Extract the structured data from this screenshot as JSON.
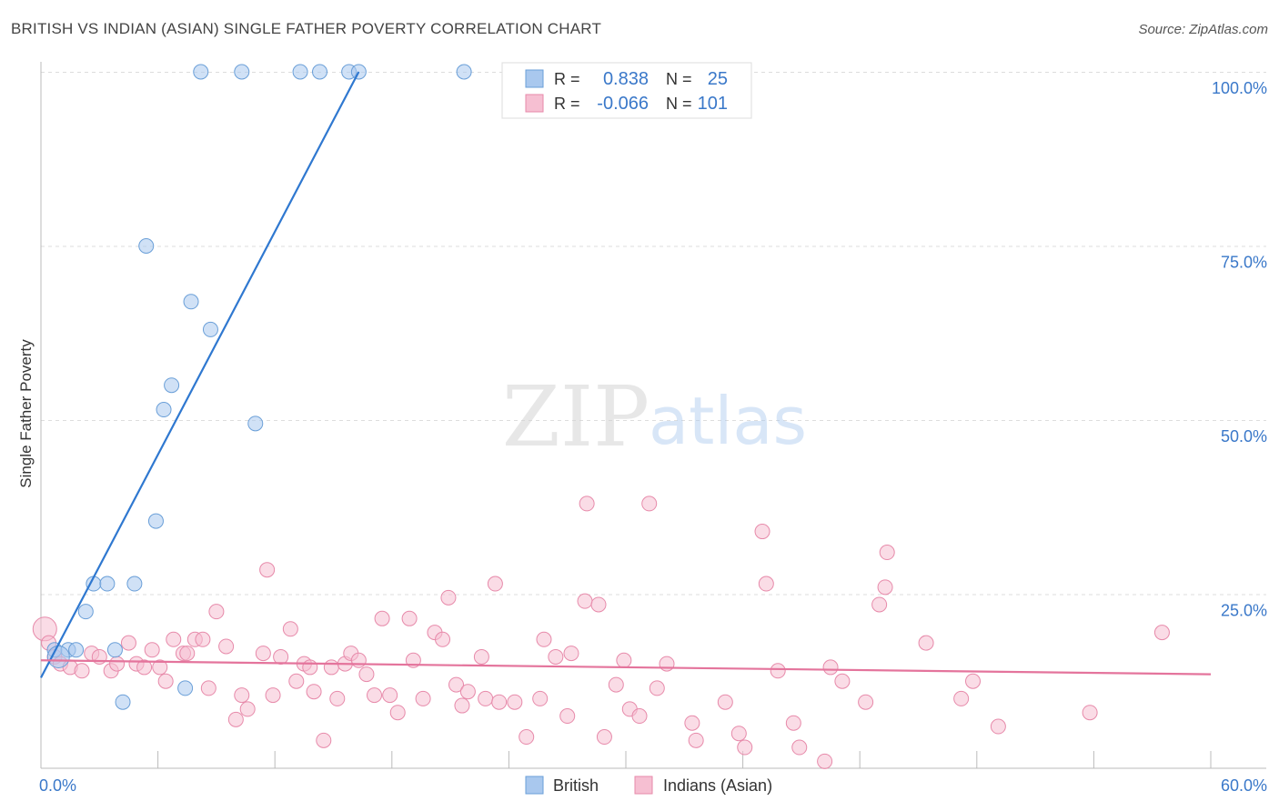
{
  "header": {
    "title": "BRITISH VS INDIAN (ASIAN) SINGLE FATHER POVERTY CORRELATION CHART",
    "source": "Source: ZipAtlas.com"
  },
  "watermark": {
    "zip": "ZIP",
    "atlas": "atlas"
  },
  "legend_box": {
    "rows": [
      {
        "r_label": "R =",
        "r_value": "0.838",
        "n_label": "N =",
        "n_value": "25"
      },
      {
        "r_label": "R =",
        "r_value": "-0.066",
        "n_label": "N =",
        "n_value": "101"
      }
    ]
  },
  "bottom_legend": [
    "British",
    "Indians (Asian)"
  ],
  "colors": {
    "british_fill": "#a9c8ee",
    "british_stroke": "#6a9fd8",
    "british_line": "#2f78d0",
    "indian_fill": "#f6bfd2",
    "indian_stroke": "#e78aaa",
    "indian_line": "#e4749c",
    "tick_label": "#3a78c9",
    "grid": "#dddddd",
    "axis": "#bbbbbb",
    "text": "#333333"
  },
  "chart_data": {
    "type": "scatter",
    "title": "BRITISH VS INDIAN (ASIAN) SINGLE FATHER POVERTY CORRELATION CHART",
    "xlabel": "",
    "ylabel": "Single Father Poverty",
    "xlim": [
      0,
      60
    ],
    "ylim": [
      0,
      105
    ],
    "x_tick_labels": [
      "0.0%",
      "60.0%"
    ],
    "y_ticks": [
      25,
      50,
      75,
      100
    ],
    "y_tick_labels": [
      "25.0%",
      "50.0%",
      "75.0%",
      "100.0%"
    ],
    "grid": true,
    "legend_position": "top-center",
    "series": [
      {
        "name": "British",
        "r": 0.838,
        "n": 25,
        "trend": {
          "x": [
            0.0,
            16.3
          ],
          "y": [
            13.0,
            100.0
          ]
        },
        "points": [
          {
            "x": 8.2,
            "y": 100.0
          },
          {
            "x": 10.3,
            "y": 100.0
          },
          {
            "x": 13.3,
            "y": 100.0
          },
          {
            "x": 14.3,
            "y": 100.0
          },
          {
            "x": 15.8,
            "y": 100.0
          },
          {
            "x": 16.3,
            "y": 100.0
          },
          {
            "x": 21.7,
            "y": 100.0
          },
          {
            "x": 5.4,
            "y": 75.0
          },
          {
            "x": 7.7,
            "y": 67.0
          },
          {
            "x": 8.7,
            "y": 63.0
          },
          {
            "x": 6.7,
            "y": 55.0
          },
          {
            "x": 6.3,
            "y": 51.5
          },
          {
            "x": 11.0,
            "y": 49.5
          },
          {
            "x": 5.9,
            "y": 35.5
          },
          {
            "x": 2.7,
            "y": 26.5
          },
          {
            "x": 3.4,
            "y": 26.5
          },
          {
            "x": 4.8,
            "y": 26.5
          },
          {
            "x": 2.3,
            "y": 22.5
          },
          {
            "x": 0.7,
            "y": 17.0
          },
          {
            "x": 1.4,
            "y": 17.0
          },
          {
            "x": 1.8,
            "y": 17.0
          },
          {
            "x": 3.8,
            "y": 17.0
          },
          {
            "x": 0.9,
            "y": 16.0
          },
          {
            "x": 7.4,
            "y": 11.5
          },
          {
            "x": 4.2,
            "y": 9.5
          }
        ]
      },
      {
        "name": "Indians (Asian)",
        "r": -0.066,
        "n": 101,
        "trend": {
          "x": [
            0.0,
            60.0
          ],
          "y": [
            15.5,
            13.5
          ]
        },
        "points": [
          {
            "x": 0.2,
            "y": 20.0
          },
          {
            "x": 0.4,
            "y": 18.0
          },
          {
            "x": 0.7,
            "y": 16.0
          },
          {
            "x": 1.0,
            "y": 15.0
          },
          {
            "x": 1.5,
            "y": 14.5
          },
          {
            "x": 2.1,
            "y": 14.0
          },
          {
            "x": 2.6,
            "y": 16.5
          },
          {
            "x": 3.0,
            "y": 16.0
          },
          {
            "x": 3.6,
            "y": 14.0
          },
          {
            "x": 3.9,
            "y": 15.0
          },
          {
            "x": 4.5,
            "y": 18.0
          },
          {
            "x": 4.9,
            "y": 15.0
          },
          {
            "x": 5.3,
            "y": 14.5
          },
          {
            "x": 5.7,
            "y": 17.0
          },
          {
            "x": 6.1,
            "y": 14.5
          },
          {
            "x": 6.4,
            "y": 12.5
          },
          {
            "x": 6.8,
            "y": 18.5
          },
          {
            "x": 7.3,
            "y": 16.5
          },
          {
            "x": 7.5,
            "y": 16.5
          },
          {
            "x": 7.9,
            "y": 18.5
          },
          {
            "x": 8.3,
            "y": 18.5
          },
          {
            "x": 8.6,
            "y": 11.5
          },
          {
            "x": 9.0,
            "y": 22.5
          },
          {
            "x": 9.5,
            "y": 17.5
          },
          {
            "x": 10.0,
            "y": 7.0
          },
          {
            "x": 10.3,
            "y": 10.5
          },
          {
            "x": 10.6,
            "y": 8.5
          },
          {
            "x": 11.4,
            "y": 16.5
          },
          {
            "x": 11.6,
            "y": 28.5
          },
          {
            "x": 11.9,
            "y": 10.5
          },
          {
            "x": 12.3,
            "y": 16.0
          },
          {
            "x": 12.8,
            "y": 20.0
          },
          {
            "x": 13.1,
            "y": 12.5
          },
          {
            "x": 13.5,
            "y": 15.0
          },
          {
            "x": 13.8,
            "y": 14.5
          },
          {
            "x": 14.0,
            "y": 11.0
          },
          {
            "x": 14.5,
            "y": 4.0
          },
          {
            "x": 14.9,
            "y": 14.5
          },
          {
            "x": 15.2,
            "y": 10.0
          },
          {
            "x": 15.6,
            "y": 15.0
          },
          {
            "x": 15.9,
            "y": 16.5
          },
          {
            "x": 16.3,
            "y": 15.5
          },
          {
            "x": 16.7,
            "y": 13.5
          },
          {
            "x": 17.1,
            "y": 10.5
          },
          {
            "x": 17.5,
            "y": 21.5
          },
          {
            "x": 17.9,
            "y": 10.5
          },
          {
            "x": 18.3,
            "y": 8.0
          },
          {
            "x": 18.9,
            "y": 21.5
          },
          {
            "x": 19.1,
            "y": 15.5
          },
          {
            "x": 19.6,
            "y": 10.0
          },
          {
            "x": 20.2,
            "y": 19.5
          },
          {
            "x": 20.6,
            "y": 18.5
          },
          {
            "x": 20.9,
            "y": 24.5
          },
          {
            "x": 21.3,
            "y": 12.0
          },
          {
            "x": 21.6,
            "y": 9.0
          },
          {
            "x": 21.9,
            "y": 11.0
          },
          {
            "x": 22.6,
            "y": 16.0
          },
          {
            "x": 22.8,
            "y": 10.0
          },
          {
            "x": 23.3,
            "y": 26.5
          },
          {
            "x": 23.5,
            "y": 9.5
          },
          {
            "x": 24.3,
            "y": 9.5
          },
          {
            "x": 24.9,
            "y": 4.5
          },
          {
            "x": 25.6,
            "y": 10.0
          },
          {
            "x": 25.8,
            "y": 18.5
          },
          {
            "x": 26.4,
            "y": 16.0
          },
          {
            "x": 27.0,
            "y": 7.5
          },
          {
            "x": 27.2,
            "y": 16.5
          },
          {
            "x": 28.0,
            "y": 38.0
          },
          {
            "x": 27.9,
            "y": 24.0
          },
          {
            "x": 28.6,
            "y": 23.5
          },
          {
            "x": 28.9,
            "y": 4.5
          },
          {
            "x": 29.5,
            "y": 12.0
          },
          {
            "x": 29.9,
            "y": 15.5
          },
          {
            "x": 30.2,
            "y": 8.5
          },
          {
            "x": 30.7,
            "y": 7.5
          },
          {
            "x": 31.2,
            "y": 38.0
          },
          {
            "x": 31.6,
            "y": 11.5
          },
          {
            "x": 32.1,
            "y": 15.0
          },
          {
            "x": 33.4,
            "y": 6.5
          },
          {
            "x": 33.6,
            "y": 4.0
          },
          {
            "x": 35.1,
            "y": 9.5
          },
          {
            "x": 35.8,
            "y": 5.0
          },
          {
            "x": 36.1,
            "y": 3.0
          },
          {
            "x": 37.0,
            "y": 34.0
          },
          {
            "x": 37.2,
            "y": 26.5
          },
          {
            "x": 37.8,
            "y": 14.0
          },
          {
            "x": 38.6,
            "y": 6.5
          },
          {
            "x": 38.9,
            "y": 3.0
          },
          {
            "x": 40.2,
            "y": 1.0
          },
          {
            "x": 41.1,
            "y": 12.5
          },
          {
            "x": 42.3,
            "y": 9.5
          },
          {
            "x": 43.0,
            "y": 23.5
          },
          {
            "x": 43.4,
            "y": 31.0
          },
          {
            "x": 43.3,
            "y": 26.0
          },
          {
            "x": 45.4,
            "y": 18.0
          },
          {
            "x": 47.2,
            "y": 10.0
          },
          {
            "x": 47.8,
            "y": 12.5
          },
          {
            "x": 49.1,
            "y": 6.0
          },
          {
            "x": 53.8,
            "y": 8.0
          },
          {
            "x": 57.5,
            "y": 19.5
          },
          {
            "x": 40.5,
            "y": 14.5
          }
        ]
      }
    ]
  }
}
